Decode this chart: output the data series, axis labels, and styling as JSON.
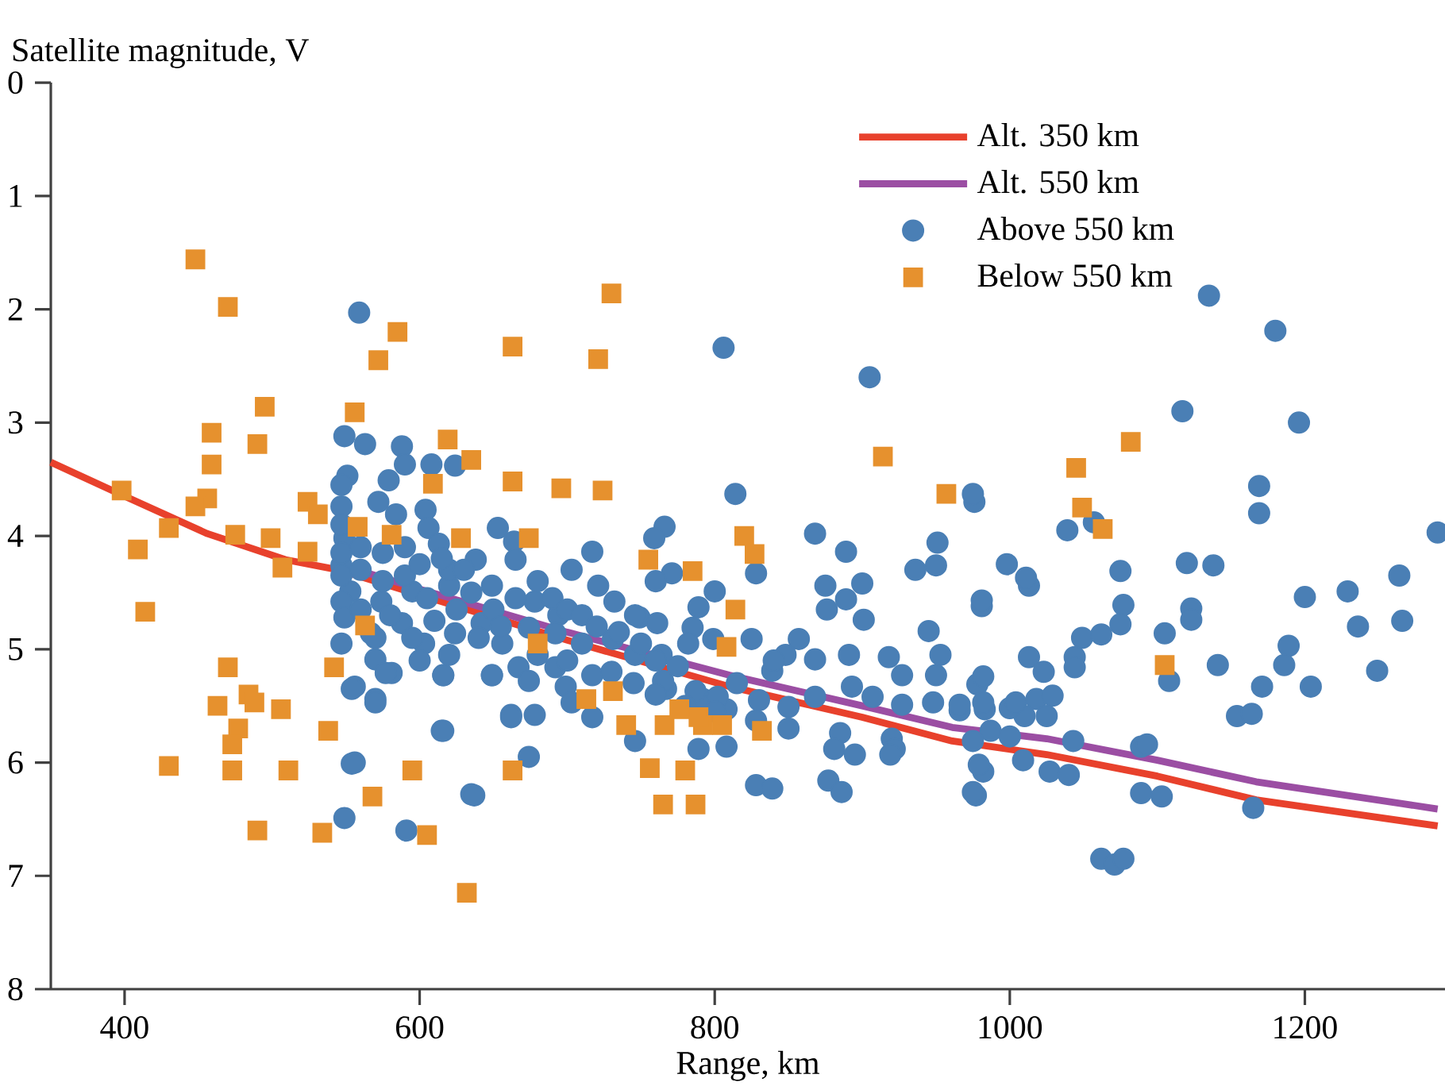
{
  "chart_data": {
    "type": "scatter",
    "xlabel": "Range, km",
    "ylabel": "Satellite magnitude, V",
    "xlim": [
      350,
      1295
    ],
    "ylim": [
      8,
      0
    ],
    "xticks": [
      400,
      600,
      800,
      1000,
      1200
    ],
    "yticks": [
      0,
      1,
      2,
      3,
      4,
      5,
      6,
      7,
      8
    ],
    "legend": "top right",
    "series": [
      {
        "name": "Alt. 350 km",
        "type": "line",
        "color": "#e8412c",
        "x": [
          350,
          400,
          456,
          509,
          545,
          700,
          810,
          900,
          961,
          1025,
          1100,
          1167,
          1290
        ],
        "values": [
          3.35,
          3.65,
          3.98,
          4.21,
          4.3,
          4.92,
          5.33,
          5.6,
          5.81,
          5.93,
          6.12,
          6.33,
          6.56
        ]
      },
      {
        "name": "Alt. 550 km",
        "type": "line",
        "color": "#9b4ea3",
        "x": [
          545,
          600,
          700,
          810,
          900,
          961,
          1025,
          1100,
          1167,
          1290
        ],
        "values": [
          4.25,
          4.47,
          4.85,
          5.23,
          5.5,
          5.69,
          5.79,
          5.98,
          6.17,
          6.41
        ]
      },
      {
        "name": "Above 550 km",
        "type": "scatter",
        "marker": "circle",
        "color": "#4a7fb5",
        "x": [
          1135,
          1180,
          1117,
          1196,
          1169,
          1169,
          1290,
          976,
          1039,
          1057,
          998,
          1013,
          981,
          1075,
          1077,
          1075,
          1049,
          1062,
          1120,
          1138,
          1123,
          1123,
          1105,
          1200,
          1229,
          1264,
          1236,
          1266,
          1189,
          1186,
          1141,
          1108,
          1171,
          1204,
          1249,
          1013,
          1023,
          1044,
          1044,
          978,
          1018,
          1029,
          1025,
          1010,
          1000,
          983,
          966,
          1154,
          1164,
          987,
          1043,
          1089,
          1093,
          1009,
          1027,
          1040,
          982,
          977,
          1089,
          1103,
          1165,
          1062,
          1071,
          1077,
          806,
          905,
          814,
          975,
          766,
          759,
          868,
          889,
          951,
          950,
          936,
          1011,
          981,
          828,
          771,
          760,
          800,
          789,
          875,
          900,
          889,
          901,
          876,
          945,
          749,
          785,
          799,
          825,
          857,
          848,
          868,
          891,
          918,
          927,
          950,
          982,
          953,
          839,
          767,
          792,
          808,
          828,
          850,
          868,
          893,
          907,
          927,
          948,
          966,
          982,
          1004,
          1000,
          885,
          920,
          922,
          975,
          789,
          808,
          881,
          895,
          979,
          828,
          839,
          877,
          886,
          975,
          919,
          850,
          559,
          549,
          563,
          588,
          590,
          608,
          624,
          579,
          572,
          604,
          584,
          606,
          653,
          664,
          613,
          638,
          665,
          717,
          703,
          721,
          694,
          732,
          746,
          761,
          678,
          649,
          620,
          595,
          574,
          553,
          547,
          549,
          547,
          551,
          547,
          547,
          567,
          588,
          603,
          624,
          642,
          656,
          674,
          692,
          710,
          731,
          746,
          764,
          782,
          549,
          570,
          581,
          556,
          570,
          616,
          649,
          667,
          674,
          692,
          699,
          717,
          703,
          765,
          787,
          802,
          662,
          678,
          717,
          746,
          615,
          556,
          674,
          635,
          549,
          554,
          570,
          554,
          591,
          637,
          616,
          662,
          616,
          649,
          577,
          547,
          547,
          547,
          547,
          560,
          575,
          590,
          605,
          620,
          635,
          650,
          665,
          580,
          595,
          610,
          625,
          640,
          655,
          570,
          560,
          575,
          590,
          600,
          615,
          630,
          680,
          690,
          700,
          710,
          720,
          735,
          750,
          760,
          775,
          560,
          600,
          620,
          680,
          700,
          730,
          745,
          760,
          780,
          800,
          815,
          830,
          840
        ],
        "values": [
          1.88,
          2.19,
          2.9,
          3.0,
          3.56,
          3.8,
          3.97,
          3.7,
          3.95,
          3.88,
          4.25,
          4.44,
          4.62,
          4.31,
          4.61,
          4.78,
          4.9,
          4.87,
          4.24,
          4.26,
          4.64,
          4.74,
          4.86,
          4.54,
          4.49,
          4.35,
          4.8,
          4.75,
          4.97,
          5.14,
          5.14,
          5.28,
          5.33,
          5.33,
          5.19,
          5.07,
          5.2,
          5.07,
          5.16,
          5.31,
          5.44,
          5.41,
          5.59,
          5.59,
          5.52,
          5.53,
          5.54,
          5.59,
          5.57,
          5.72,
          5.81,
          5.86,
          5.84,
          5.98,
          6.08,
          6.11,
          6.08,
          6.29,
          6.27,
          6.3,
          6.4,
          6.85,
          6.9,
          6.85,
          2.34,
          2.6,
          3.63,
          3.63,
          3.92,
          4.02,
          3.98,
          4.14,
          4.06,
          4.26,
          4.3,
          4.37,
          4.57,
          4.33,
          4.33,
          4.4,
          4.49,
          4.63,
          4.44,
          4.42,
          4.56,
          4.74,
          4.65,
          4.84,
          4.72,
          4.81,
          4.91,
          4.91,
          4.91,
          5.05,
          5.09,
          5.05,
          5.07,
          5.23,
          5.23,
          5.24,
          5.05,
          5.19,
          5.35,
          5.44,
          5.53,
          5.63,
          5.51,
          5.42,
          5.33,
          5.42,
          5.49,
          5.47,
          5.49,
          5.47,
          5.47,
          5.77,
          5.74,
          5.79,
          5.88,
          5.81,
          5.88,
          5.86,
          5.88,
          5.93,
          6.02,
          6.2,
          6.23,
          6.16,
          6.26,
          6.26,
          5.93,
          5.7,
          2.03,
          3.12,
          3.19,
          3.21,
          3.37,
          3.37,
          3.38,
          3.51,
          3.7,
          3.77,
          3.81,
          3.93,
          3.93,
          4.05,
          4.07,
          4.21,
          4.21,
          4.14,
          4.3,
          4.44,
          4.7,
          4.58,
          4.7,
          4.77,
          4.58,
          4.44,
          4.44,
          4.49,
          4.58,
          4.49,
          4.26,
          4.02,
          3.74,
          3.47,
          4.58,
          4.95,
          4.86,
          4.77,
          4.95,
          4.86,
          4.77,
          4.95,
          4.81,
          4.86,
          4.95,
          4.91,
          5.05,
          5.05,
          4.95,
          4.72,
          5.09,
          5.21,
          5.33,
          5.44,
          5.23,
          5.23,
          5.16,
          5.28,
          5.16,
          5.33,
          5.23,
          5.47,
          5.28,
          5.37,
          5.42,
          5.58,
          5.58,
          5.6,
          5.81,
          5.72,
          6.0,
          5.95,
          6.28,
          6.49,
          5.35,
          5.47,
          6.01,
          6.6,
          6.29,
          5.72,
          5.6,
          5.23,
          5.23,
          5.21,
          3.55,
          3.9,
          4.15,
          4.35,
          4.3,
          4.4,
          4.35,
          4.55,
          4.3,
          4.5,
          4.65,
          4.55,
          4.7,
          4.9,
          4.75,
          4.65,
          4.9,
          4.8,
          4.9,
          4.1,
          4.15,
          4.1,
          4.25,
          4.2,
          4.3,
          4.4,
          4.55,
          4.65,
          4.7,
          4.8,
          4.85,
          4.95,
          5.1,
          5.15,
          4.65,
          5.1,
          5.05,
          5.05,
          5.1,
          5.2,
          5.3,
          5.4,
          5.5,
          5.55,
          5.3,
          5.45,
          5.1
        ]
      },
      {
        "name": "Below 550 km",
        "type": "scatter",
        "marker": "square",
        "color": "#e6912e",
        "x": [
          448,
          470,
          495,
          490,
          459,
          459,
          456,
          448,
          398,
          430,
          409,
          475,
          499,
          507,
          524,
          524,
          531,
          556,
          572,
          585,
          663,
          619,
          635,
          609,
          663,
          558,
          581,
          628,
          414,
          563,
          470,
          542,
          463,
          484,
          506,
          477,
          488,
          473,
          538,
          430,
          473,
          511,
          595,
          663,
          568,
          490,
          534,
          605,
          632,
          730,
          721,
          696,
          724,
          674,
          755,
          785,
          756,
          765,
          731,
          713,
          740,
          766,
          776,
          792,
          680,
          808,
          914,
          957,
          820,
          827,
          814,
          789,
          805,
          832,
          780,
          787,
          1045,
          1082,
          1049,
          1063,
          1105
        ],
        "values": [
          1.56,
          1.98,
          2.86,
          3.19,
          3.09,
          3.37,
          3.67,
          3.74,
          3.6,
          3.93,
          4.12,
          3.99,
          4.02,
          4.28,
          4.14,
          3.7,
          3.81,
          2.91,
          2.45,
          2.2,
          2.33,
          3.15,
          3.33,
          3.54,
          3.52,
          3.92,
          3.99,
          4.02,
          4.67,
          4.79,
          5.16,
          5.16,
          5.5,
          5.4,
          5.53,
          5.7,
          5.47,
          5.84,
          5.72,
          6.03,
          6.07,
          6.07,
          6.07,
          6.07,
          6.3,
          6.6,
          6.62,
          6.64,
          7.15,
          1.86,
          2.44,
          3.58,
          3.6,
          4.02,
          4.21,
          4.31,
          6.05,
          6.37,
          5.37,
          5.44,
          5.67,
          5.67,
          5.53,
          5.67,
          4.95,
          4.98,
          3.3,
          3.63,
          4.0,
          4.16,
          4.65,
          5.6,
          5.67,
          5.72,
          6.07,
          6.37,
          3.4,
          3.17,
          3.75,
          3.94,
          5.14
        ]
      }
    ]
  }
}
